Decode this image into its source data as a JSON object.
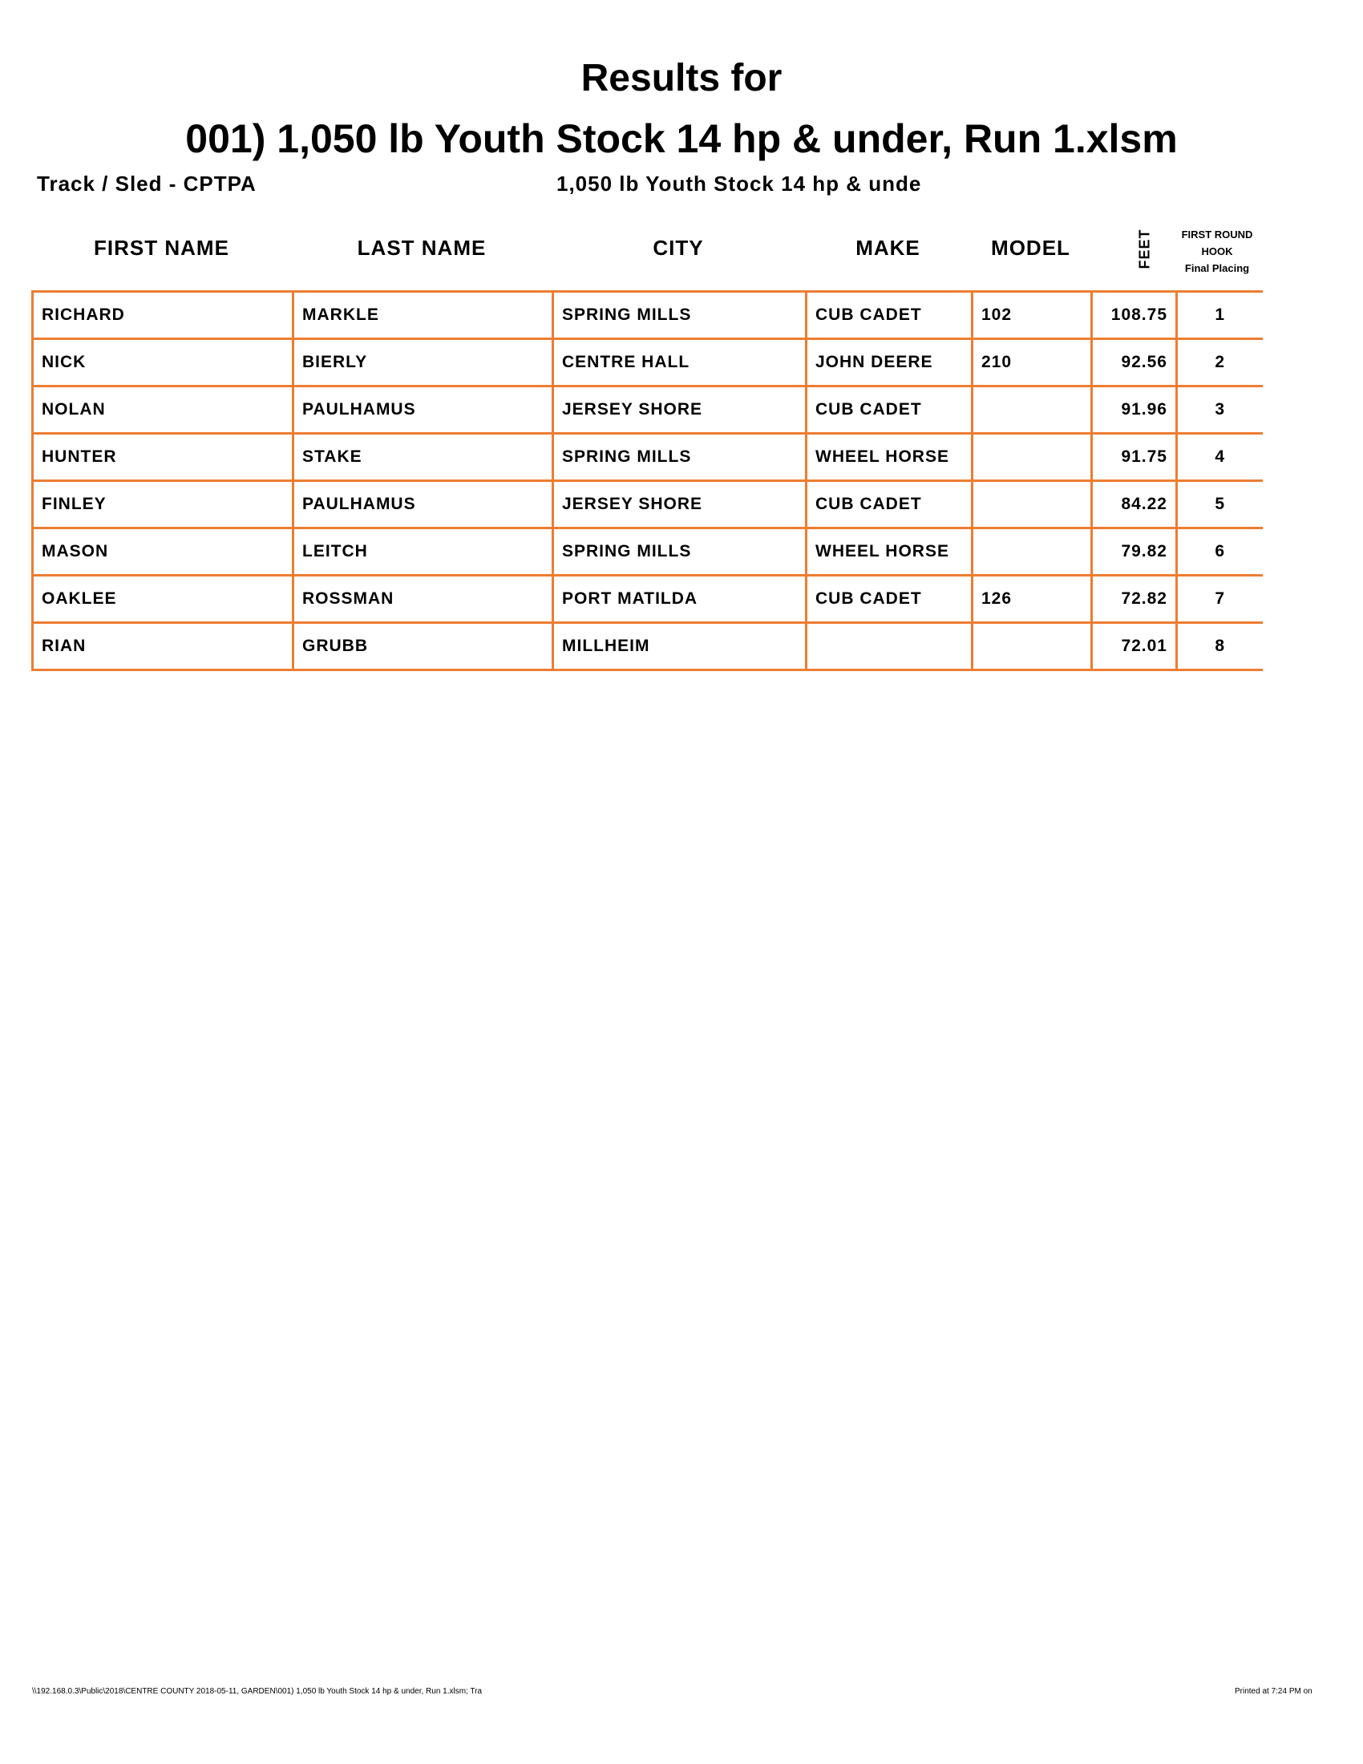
{
  "title_line1": "Results for",
  "title_line2": "001) 1,050 lb Youth Stock 14 hp & under, Run 1.xlsm",
  "track_sled": "Track / Sled - CPTPA",
  "class_name": "1,050 lb Youth Stock 14 hp & unde",
  "headers": {
    "first": "FIRST NAME",
    "last": "LAST NAME",
    "city": "CITY",
    "make": "MAKE",
    "model": "MODEL",
    "feet": "FEET",
    "hook1": "FIRST ROUND",
    "hook2": "HOOK",
    "hook3": "Final Placing"
  },
  "accent_color": "#ED7D31",
  "rows": [
    [
      "RICHARD",
      "MARKLE",
      "SPRING MILLS",
      "CUB CADET",
      "102",
      "108.75",
      "1"
    ],
    [
      "NICK",
      "BIERLY",
      "CENTRE HALL",
      "JOHN DEERE",
      "210",
      "92.56",
      "2"
    ],
    [
      "NOLAN",
      "PAULHAMUS",
      "JERSEY SHORE",
      "CUB CADET",
      "",
      "91.96",
      "3"
    ],
    [
      "HUNTER",
      "STAKE",
      "SPRING MILLS",
      "WHEEL HORSE",
      "",
      "91.75",
      "4"
    ],
    [
      "FINLEY",
      "PAULHAMUS",
      "JERSEY SHORE",
      "CUB CADET",
      "",
      "84.22",
      "5"
    ],
    [
      "MASON",
      "LEITCH",
      "SPRING MILLS",
      "WHEEL HORSE",
      "",
      "79.82",
      "6"
    ],
    [
      "OAKLEE",
      "ROSSMAN",
      "PORT MATILDA",
      "CUB CADET",
      "126",
      "72.82",
      "7"
    ],
    [
      "RIAN",
      "GRUBB",
      "MILLHEIM",
      "",
      "",
      "72.01",
      "8"
    ]
  ],
  "footer_path": "\\\\192.168.0.3\\Public\\2018\\CENTRE COUNTY 2018-05-11, GARDEN\\001) 1,050 lb Youth Stock 14 hp & under, Run 1.xlsm; Tra",
  "footer_printed": "Printed at 7:24 PM on"
}
